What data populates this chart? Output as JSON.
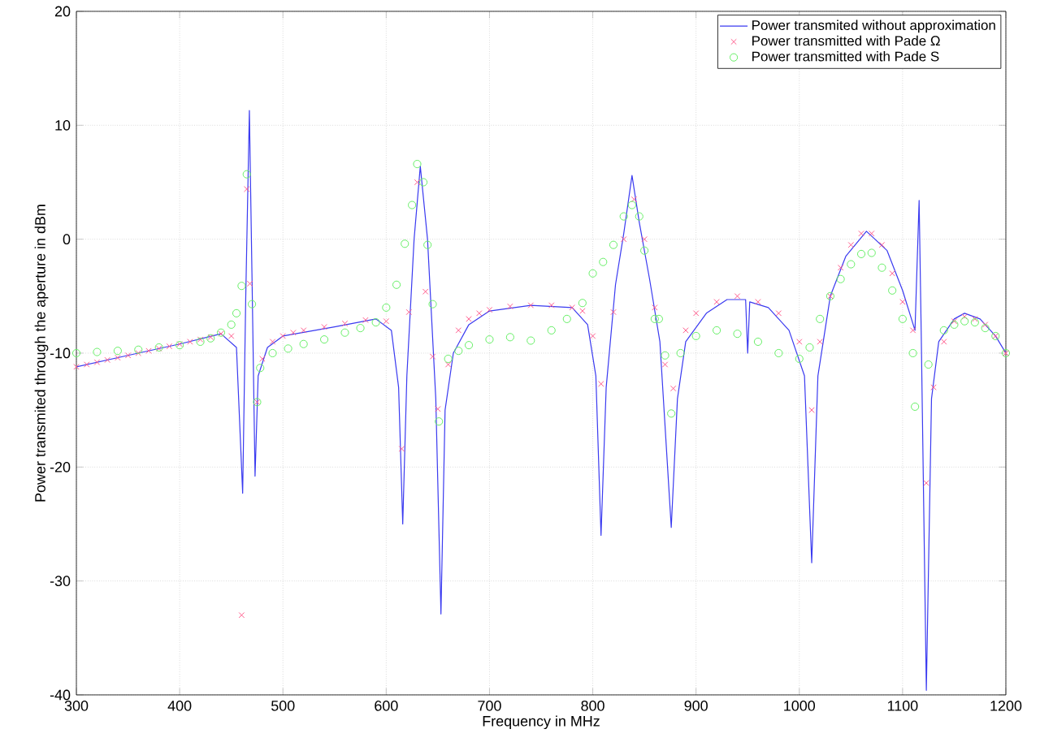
{
  "chart_data": {
    "type": "line",
    "xlabel": "Frequency in MHz",
    "ylabel": "Power transmited through the aperture in dBm",
    "xlim": [
      300,
      1200
    ],
    "ylim": [
      -40,
      20
    ],
    "xticks": [
      300,
      400,
      500,
      600,
      700,
      800,
      900,
      1000,
      1100,
      1200
    ],
    "yticks": [
      -40,
      -30,
      -20,
      -10,
      0,
      10,
      20
    ],
    "grid": true,
    "legend": "top right",
    "series": [
      {
        "name": "Power transmited without approximation",
        "marker": "none",
        "line_style": "solid",
        "color": "#3a3af0",
        "x": [
          300,
          350,
          400,
          440,
          455,
          461,
          464,
          467.5,
          470,
          473,
          476,
          485,
          500,
          550,
          590,
          605,
          612,
          616,
          620,
          627,
          633,
          640,
          648,
          653,
          657,
          665,
          680,
          700,
          740,
          780,
          795,
          803,
          808,
          813,
          822,
          830,
          838,
          845,
          855,
          865,
          876,
          882,
          890,
          910,
          930,
          948,
          950,
          952,
          970,
          990,
          1005,
          1012,
          1018,
          1030,
          1045,
          1065,
          1085,
          1100,
          1112,
          1116,
          1118,
          1123,
          1128,
          1135,
          1150,
          1160,
          1175,
          1190,
          1200
        ],
        "values": [
          -11.2,
          -10.2,
          -9.2,
          -8.3,
          -9.5,
          -22.3,
          -5,
          11.3,
          -3,
          -20.8,
          -12,
          -9.5,
          -8.5,
          -7.7,
          -7,
          -8,
          -13,
          -25,
          -12,
          0,
          6.4,
          0,
          -14,
          -32.9,
          -15,
          -10,
          -7.5,
          -6.3,
          -5.8,
          -6,
          -7.5,
          -12,
          -26,
          -13,
          -4,
          0.5,
          5.6,
          1.5,
          -3.5,
          -9,
          -25.3,
          -14,
          -9,
          -6.5,
          -5.3,
          -5.3,
          -10,
          -5.5,
          -6,
          -8,
          -12,
          -28.4,
          -12,
          -5,
          -1.5,
          0.7,
          -1,
          -4.5,
          -8,
          3.4,
          -8,
          -39.6,
          -14,
          -9,
          -7,
          -6.5,
          -7,
          -8.5,
          -10
        ]
      },
      {
        "name": "Power transmitted with Pade Ω",
        "type": "scatter",
        "marker": "cross",
        "color": "#ff5a8c",
        "x": [
          300,
          310,
          320,
          330,
          340,
          350,
          360,
          370,
          380,
          390,
          400,
          410,
          420,
          430,
          440,
          450,
          460,
          465,
          468,
          475,
          480,
          490,
          500,
          510,
          520,
          540,
          560,
          580,
          600,
          615,
          622,
          630,
          638,
          645,
          650,
          660,
          670,
          680,
          690,
          700,
          720,
          740,
          760,
          780,
          790,
          800,
          808,
          820,
          830,
          840,
          850,
          860,
          870,
          878,
          890,
          900,
          920,
          940,
          960,
          980,
          1000,
          1012,
          1020,
          1030,
          1040,
          1050,
          1060,
          1070,
          1080,
          1090,
          1100,
          1110,
          1123,
          1130,
          1140,
          1150,
          1160,
          1170,
          1180,
          1190,
          1200
        ],
        "values": [
          -11.2,
          -11,
          -10.8,
          -10.6,
          -10.4,
          -10.2,
          -10,
          -9.8,
          -9.6,
          -9.4,
          -9.2,
          -9,
          -8.8,
          -8.6,
          -8.3,
          -8.5,
          -33,
          4.4,
          -3.9,
          -14.3,
          -10.5,
          -9,
          -8.5,
          -8.2,
          -8,
          -7.7,
          -7.4,
          -7.1,
          -7.2,
          -18.4,
          -6.4,
          5,
          -4.6,
          -10.3,
          -14.9,
          -11,
          -8,
          -7,
          -6.5,
          -6.2,
          -5.9,
          -5.8,
          -5.8,
          -6,
          -6.3,
          -8.5,
          -12.7,
          -6.4,
          0,
          3.5,
          0,
          -6,
          -11,
          -13.1,
          -8,
          -6.5,
          -5.5,
          -5,
          -5.5,
          -6.5,
          -9,
          -15,
          -9,
          -5,
          -2.5,
          -0.5,
          0.5,
          0.5,
          -0.5,
          -3,
          -5.5,
          -8,
          -21.4,
          -13,
          -9,
          -7.2,
          -6.8,
          -7,
          -7.5,
          -8.5,
          -10
        ]
      },
      {
        "name": "Power transmitted with Pade S",
        "type": "scatter",
        "marker": "circle",
        "color": "#66ee66",
        "x": [
          300,
          320,
          340,
          360,
          380,
          400,
          420,
          430,
          440,
          450,
          455,
          460,
          465,
          470,
          475,
          478,
          490,
          505,
          520,
          540,
          560,
          575,
          590,
          600,
          610,
          618,
          625,
          630,
          636,
          640,
          645,
          651,
          660,
          670,
          680,
          700,
          720,
          740,
          760,
          775,
          790,
          800,
          810,
          820,
          830,
          838,
          845,
          850,
          860,
          864,
          870,
          876,
          885,
          900,
          920,
          940,
          960,
          980,
          1000,
          1010,
          1020,
          1030,
          1040,
          1050,
          1060,
          1070,
          1080,
          1090,
          1100,
          1110,
          1112,
          1125,
          1140,
          1150,
          1160,
          1170,
          1180,
          1190,
          1200
        ],
        "values": [
          -10,
          -9.9,
          -9.8,
          -9.7,
          -9.5,
          -9.3,
          -9,
          -8.7,
          -8.2,
          -7.5,
          -6.5,
          -4.1,
          5.7,
          -5.7,
          -14.3,
          -11.3,
          -10,
          -9.6,
          -9.2,
          -8.8,
          -8.2,
          -7.8,
          -7.3,
          -6,
          -4,
          -0.4,
          3,
          6.6,
          5,
          -0.5,
          -5.7,
          -16,
          -10.5,
          -9.8,
          -9.3,
          -8.8,
          -8.6,
          -8.9,
          -8,
          -7,
          -5.6,
          -3,
          -2,
          -0.5,
          2,
          3,
          2,
          -1,
          -7,
          -7,
          -10.2,
          -15.3,
          -10,
          -8.5,
          -8,
          -8.3,
          -9,
          -10,
          -10.5,
          -9.5,
          -7,
          -5,
          -3.5,
          -2.2,
          -1.3,
          -1.2,
          -2.5,
          -4.5,
          -7,
          -10,
          -14.7,
          -11,
          -8,
          -7.5,
          -7.2,
          -7.3,
          -7.8,
          -8.5,
          -10
        ]
      }
    ]
  }
}
